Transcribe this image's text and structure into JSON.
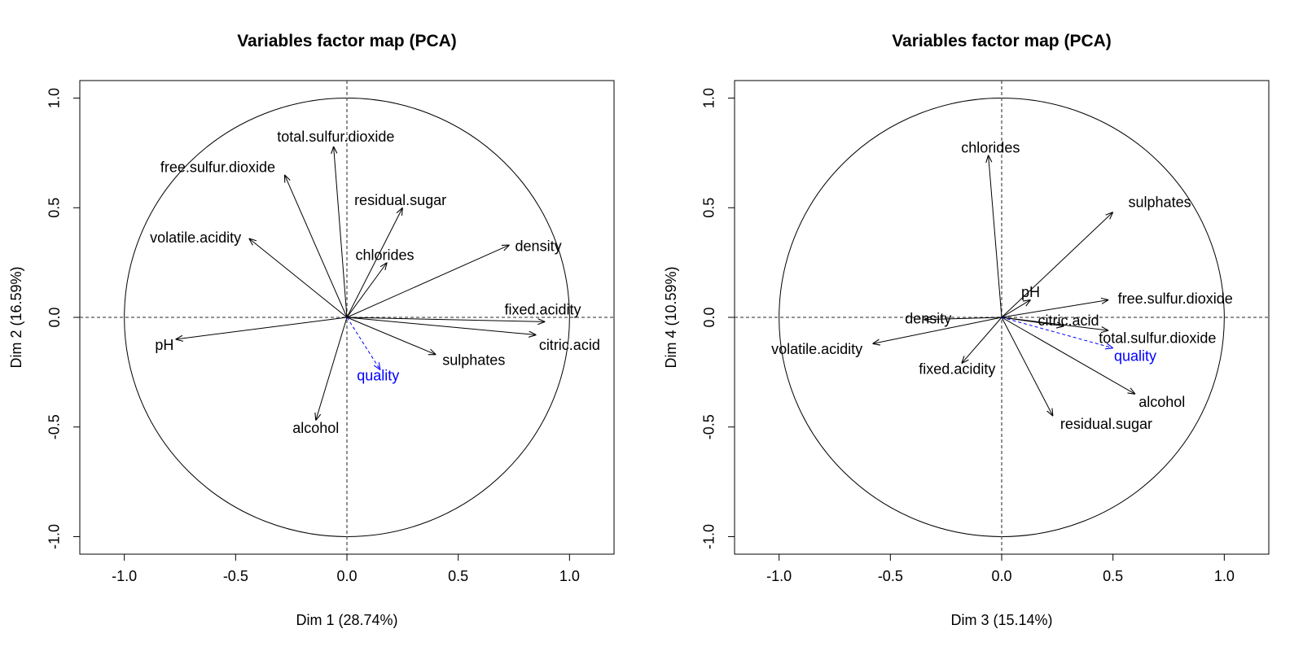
{
  "chart_data": [
    {
      "type": "scatter",
      "title": "Variables factor map (PCA)",
      "xlabel": "Dim 1 (28.74%)",
      "ylabel": "Dim 2 (16.59%)",
      "xlim": [
        -1.2,
        1.2
      ],
      "ylim": [
        -1.08,
        1.08
      ],
      "xticks": [
        "-1.0",
        "-0.5",
        "0.0",
        "0.5",
        "1.0"
      ],
      "yticks": [
        "-1.0",
        "-0.5",
        "0.0",
        "0.5",
        "1.0"
      ],
      "unit_circle": true,
      "reference_lines": "dashed at x=0 and y=0",
      "variables": [
        {
          "name": "fixed.acidity",
          "x": 0.89,
          "y": -0.02,
          "lx": 0.88,
          "ly": 0.03,
          "anchor": "middle",
          "color": "#000000"
        },
        {
          "name": "volatile.acidity",
          "x": -0.44,
          "y": 0.36,
          "lx": -0.68,
          "ly": 0.36,
          "anchor": "middle",
          "color": "#000000"
        },
        {
          "name": "citric.acid",
          "x": 0.85,
          "y": -0.08,
          "lx": 1.0,
          "ly": -0.13,
          "anchor": "middle",
          "color": "#000000"
        },
        {
          "name": "residual.sugar",
          "x": 0.25,
          "y": 0.5,
          "lx": 0.24,
          "ly": 0.53,
          "anchor": "middle",
          "color": "#000000"
        },
        {
          "name": "chlorides",
          "x": 0.18,
          "y": 0.25,
          "lx": 0.17,
          "ly": 0.28,
          "anchor": "middle",
          "color": "#000000"
        },
        {
          "name": "free.sulfur.dioxide",
          "x": -0.28,
          "y": 0.65,
          "lx": -0.58,
          "ly": 0.68,
          "anchor": "middle",
          "color": "#000000"
        },
        {
          "name": "total.sulfur.dioxide",
          "x": -0.06,
          "y": 0.78,
          "lx": -0.05,
          "ly": 0.82,
          "anchor": "middle",
          "color": "#000000"
        },
        {
          "name": "density",
          "x": 0.73,
          "y": 0.33,
          "lx": 0.86,
          "ly": 0.32,
          "anchor": "middle",
          "color": "#000000"
        },
        {
          "name": "pH",
          "x": -0.77,
          "y": -0.1,
          "lx": -0.82,
          "ly": -0.13,
          "anchor": "middle",
          "color": "#000000"
        },
        {
          "name": "sulphates",
          "x": 0.4,
          "y": -0.17,
          "lx": 0.57,
          "ly": -0.2,
          "anchor": "middle",
          "color": "#000000"
        },
        {
          "name": "alcohol",
          "x": -0.14,
          "y": -0.47,
          "lx": -0.14,
          "ly": -0.51,
          "anchor": "middle",
          "color": "#000000"
        },
        {
          "name": "quality",
          "x": 0.15,
          "y": -0.24,
          "lx": 0.14,
          "ly": -0.27,
          "anchor": "middle",
          "color": "#0000ff",
          "dashed": true
        }
      ]
    },
    {
      "type": "scatter",
      "title": "Variables factor map (PCA)",
      "xlabel": "Dim 3 (15.14%)",
      "ylabel": "Dim 4 (10.59%)",
      "xlim": [
        -1.2,
        1.2
      ],
      "ylim": [
        -1.08,
        1.08
      ],
      "xticks": [
        "-1.0",
        "-0.5",
        "0.0",
        "0.5",
        "1.0"
      ],
      "yticks": [
        "-1.0",
        "-0.5",
        "0.0",
        "0.5",
        "1.0"
      ],
      "unit_circle": true,
      "reference_lines": "dashed at x=0 and y=0",
      "variables": [
        {
          "name": "fixed.acidity",
          "x": -0.18,
          "y": -0.21,
          "lx": -0.2,
          "ly": -0.24,
          "anchor": "middle",
          "color": "#000000"
        },
        {
          "name": "volatile.acidity",
          "x": -0.58,
          "y": -0.12,
          "lx": -0.83,
          "ly": -0.15,
          "anchor": "middle",
          "color": "#000000"
        },
        {
          "name": "citric.acid",
          "x": 0.28,
          "y": -0.04,
          "lx": 0.3,
          "ly": -0.02,
          "anchor": "middle",
          "color": "#000000"
        },
        {
          "name": "residual.sugar",
          "x": 0.23,
          "y": -0.45,
          "lx": 0.47,
          "ly": -0.49,
          "anchor": "middle",
          "color": "#000000"
        },
        {
          "name": "chlorides",
          "x": -0.06,
          "y": 0.74,
          "lx": -0.05,
          "ly": 0.77,
          "anchor": "middle",
          "color": "#000000"
        },
        {
          "name": "free.sulfur.dioxide",
          "x": 0.48,
          "y": 0.08,
          "lx": 0.78,
          "ly": 0.08,
          "anchor": "middle",
          "color": "#000000"
        },
        {
          "name": "total.sulfur.dioxide",
          "x": 0.48,
          "y": -0.06,
          "lx": 0.7,
          "ly": -0.1,
          "anchor": "middle",
          "color": "#000000"
        },
        {
          "name": "density",
          "x": -0.35,
          "y": -0.01,
          "lx": -0.33,
          "ly": -0.01,
          "anchor": "middle",
          "color": "#000000"
        },
        {
          "name": "pH",
          "x": 0.13,
          "y": 0.08,
          "lx": 0.13,
          "ly": 0.11,
          "anchor": "middle",
          "color": "#000000"
        },
        {
          "name": "sulphates",
          "x": 0.5,
          "y": 0.48,
          "lx": 0.71,
          "ly": 0.52,
          "anchor": "middle",
          "color": "#000000"
        },
        {
          "name": "alcohol",
          "x": 0.6,
          "y": -0.35,
          "lx": 0.72,
          "ly": -0.39,
          "anchor": "middle",
          "color": "#000000"
        },
        {
          "name": "quality",
          "x": 0.5,
          "y": -0.14,
          "lx": 0.6,
          "ly": -0.18,
          "anchor": "middle",
          "color": "#0000ff",
          "dashed": true
        }
      ]
    }
  ]
}
